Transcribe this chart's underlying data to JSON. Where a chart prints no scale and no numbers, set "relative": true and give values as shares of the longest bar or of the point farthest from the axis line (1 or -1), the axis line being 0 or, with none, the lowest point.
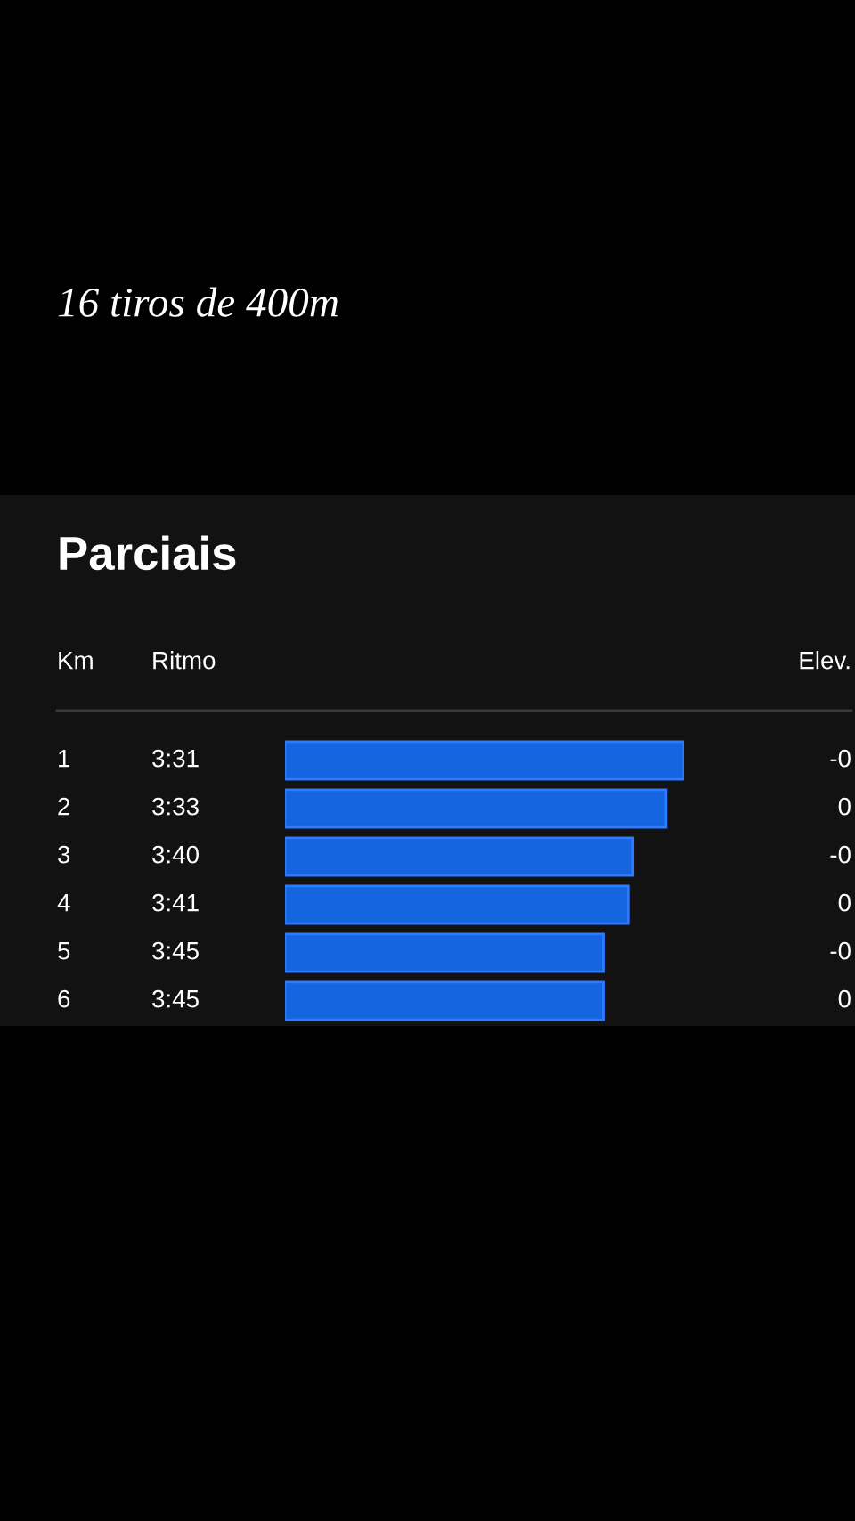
{
  "chart_data": {
    "type": "bar",
    "orientation": "horizontal",
    "relative": true,
    "title": "16 tiros de 400m",
    "subtitle": "Parciais",
    "ylabel": "Km",
    "categories": [
      "1",
      "2",
      "3",
      "4",
      "5",
      "6"
    ],
    "values": [
      1,
      0.955,
      0.872,
      0.86,
      0.798,
      0.798
    ],
    "color": "#1565e0",
    "annotations": [
      "Ritmo",
      "Elev.",
      "3:31",
      "3:33",
      "3:40",
      "3:41",
      "3:45",
      "3:45",
      "-0",
      "0",
      "-0",
      "0",
      "-0",
      "0"
    ]
  }
}
